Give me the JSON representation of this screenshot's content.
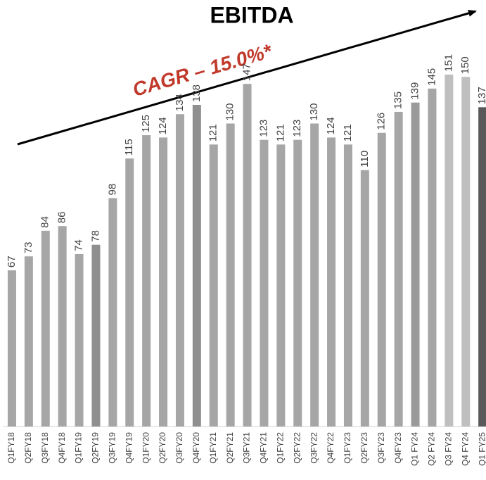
{
  "chart_data": {
    "type": "bar",
    "title": "EBITDA",
    "annotation": "CAGR – 15.0%*",
    "categories": [
      "Q1FY18",
      "Q2FY18",
      "Q3FY18",
      "Q4FY18",
      "Q1FY19",
      "Q2FY19",
      "Q3FY19",
      "Q4FY19",
      "Q1FY20",
      "Q2FY20",
      "Q3FY20",
      "Q4FY20",
      "Q1FY21",
      "Q2FY21",
      "Q3FY21",
      "Q4FY21",
      "Q1FY22",
      "Q2FY22",
      "Q3FY22",
      "Q4FY22",
      "Q1FY23",
      "Q2FY23",
      "Q3FY23",
      "Q4FY23",
      "Q1 FY24",
      "Q2 FY24",
      "Q3 FY24",
      "Q4 FY24",
      "Q1 FY25"
    ],
    "values": [
      67,
      73,
      84,
      86,
      74,
      78,
      98,
      115,
      125,
      124,
      134,
      138,
      121,
      130,
      147,
      123,
      121,
      123,
      130,
      124,
      121,
      110,
      126,
      135,
      139,
      145,
      151,
      150,
      137
    ],
    "colors": [
      "#a6a6a6",
      "#a6a6a6",
      "#a6a6a6",
      "#a6a6a6",
      "#a6a6a6",
      "#8f8f8f",
      "#a6a6a6",
      "#a6a6a6",
      "#a6a6a6",
      "#a6a6a6",
      "#a6a6a6",
      "#8f8f8f",
      "#a6a6a6",
      "#a6a6a6",
      "#a6a6a6",
      "#a6a6a6",
      "#a6a6a6",
      "#a6a6a6",
      "#a6a6a6",
      "#a6a6a6",
      "#a6a6a6",
      "#a6a6a6",
      "#a6a6a6",
      "#a6a6a6",
      "#9a9a9a",
      "#a6a6a6",
      "#bfbfbf",
      "#bfbfbf",
      "#595959"
    ],
    "annotation_color": "#c0392b",
    "ylim": [
      0,
      183
    ]
  }
}
